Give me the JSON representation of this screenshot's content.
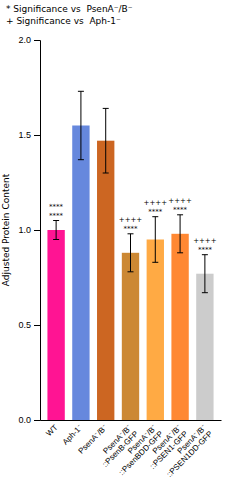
{
  "chart_data": {
    "type": "bar",
    "categories": [
      "WT",
      "Aph-1⁻",
      "PsenA⁻/B⁻",
      "PsenA⁻/B⁻\n::PsenB-GFP",
      "PsenA⁻/B⁻\n::PsenBDD-GFP",
      "PsenA⁻/B⁻\n::PSEN1-GFP",
      "PsenA⁻/B⁻\n::PSEN1DD-GFP"
    ],
    "values": [
      1.0,
      1.55,
      1.47,
      0.88,
      0.95,
      0.98,
      0.77
    ],
    "errors": [
      0.05,
      0.18,
      0.17,
      0.1,
      0.12,
      0.1,
      0.1
    ],
    "colors": [
      "#FF1493",
      "#6688DD",
      "#CC6622",
      "#CC8833",
      "#FFAA44",
      "#FF8833",
      "#CCCCCC"
    ],
    "ylabel": "Adjusted Protein Content",
    "ylim": [
      0,
      2.0
    ],
    "yticks": [
      {
        "value": 0.0,
        "label": "0.0"
      },
      {
        "value": 0.5,
        "label": "0.5"
      },
      {
        "value": 1.0,
        "label": "1.0"
      },
      {
        "value": 1.5,
        "label": "1.5"
      },
      {
        "value": 2.0,
        "label": "2.0"
      }
    ],
    "significance_wt": [
      "****",
      null,
      null,
      "****",
      "****",
      "****",
      "****"
    ],
    "significance_aph1": [
      "****",
      null,
      null,
      "++++",
      "++++",
      "++++",
      "++++"
    ],
    "notes": [
      "* Significance vs  PsenA⁻/B⁻",
      "+ Significance vs  Aph-1⁻"
    ]
  }
}
